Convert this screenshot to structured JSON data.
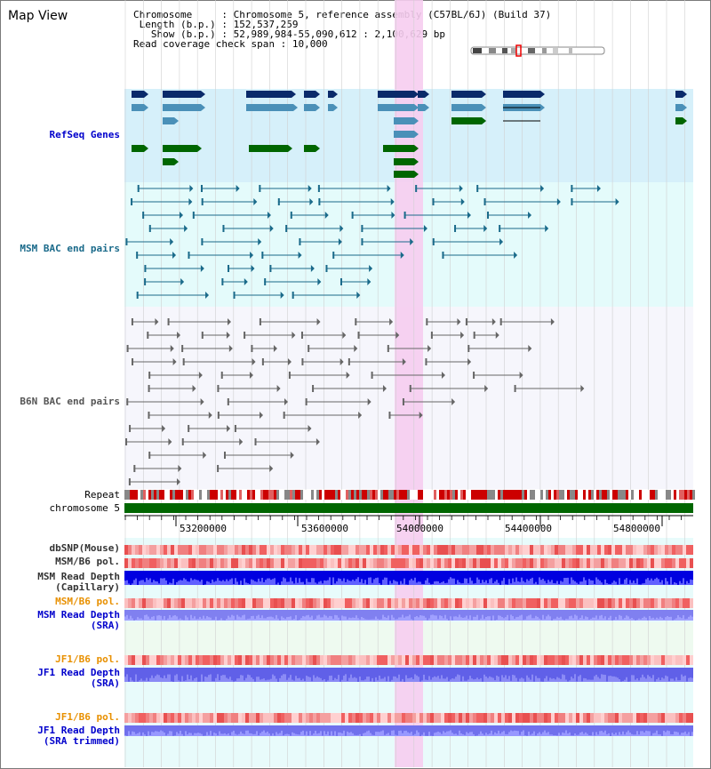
{
  "title": "Map View",
  "info": {
    "chromosome_key": "Chromosome",
    "chromosome_val": "Chromosome 5, reference assembly (C57BL/6J) (Build 37)",
    "length_key": "Length (b.p.)",
    "length_val": "152,537,259",
    "show_key": "Show (b.p.)",
    "show_val": "52,989,984-55,090,612 : 2,100,629 bp",
    "coverage_key": "Read coverage check span",
    "coverage_val": "10,000"
  },
  "tracks": {
    "refseq": "RefSeq Genes",
    "msm_bac": "MSM BAC end pairs",
    "b6n_bac": "B6N BAC end pairs",
    "repeat": "Repeat",
    "chromosome": "chromosome 5",
    "dbsnp": "dbSNP(Mouse)",
    "msm_b6_pol": "MSM/B6 pol.",
    "msm_depth_cap_1": "MSM Read Depth",
    "msm_depth_cap_2": "(Capillary)",
    "msm_b6_pol_sra": "MSM/B6 pol.",
    "msm_depth_sra_1": "MSM Read Depth",
    "msm_depth_sra_2": "(SRA)",
    "jf1_b6_pol": "JF1/B6 pol.",
    "jf1_depth_sra_1": "JF1 Read Depth",
    "jf1_depth_sra_2": "(SRA)",
    "jf1_b6_pol_2": "JF1/B6 pol.",
    "jf1_depth_trim_1": "JF1 Read Depth",
    "jf1_depth_trim_2": "(SRA trimmed)"
  },
  "axis": {
    "ticks": [
      "53200000",
      "53600000",
      "54000000",
      "54400000",
      "54800000"
    ]
  },
  "colors": {
    "refseq_bg": "#d6f0fa",
    "msm_bac_bg": "#e2fafa",
    "highlight": "#f5d0f0",
    "gene_dark_blue": "#0a2a6a",
    "gene_light_blue": "#4a90b8",
    "gene_green": "#006600",
    "bac_msm": "#1a6a8a",
    "bac_b6n": "#555555",
    "chromosome_bar": "#006600"
  }
}
